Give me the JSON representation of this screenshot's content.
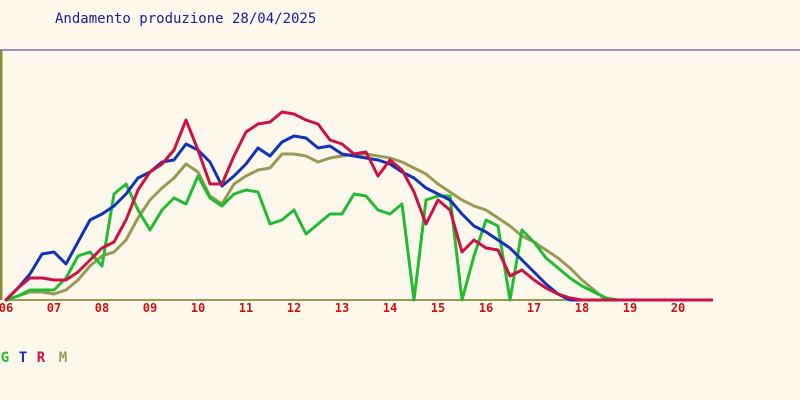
{
  "chart_data": {
    "type": "line",
    "title": "Andamento produzione 28/04/2025",
    "xlabel": "",
    "ylabel": "",
    "x_tick_labels": [
      "06",
      "07",
      "08",
      "09",
      "10",
      "11",
      "12",
      "13",
      "14",
      "15",
      "16",
      "17",
      "18",
      "19",
      "20"
    ],
    "x_range": [
      6.0,
      20.7
    ],
    "y_range": [
      0,
      100
    ],
    "grid": false,
    "legend_position": "bottom-left",
    "series": [
      {
        "name": "G",
        "color": "#22bb33",
        "x": [
          6.0,
          6.25,
          6.5,
          6.75,
          7.0,
          7.25,
          7.5,
          7.75,
          8.0,
          8.25,
          8.5,
          8.75,
          9.0,
          9.25,
          9.5,
          9.75,
          10.0,
          10.25,
          10.5,
          10.75,
          11.0,
          11.25,
          11.5,
          11.75,
          12.0,
          12.25,
          12.5,
          12.75,
          13.0,
          13.25,
          13.5,
          13.75,
          14.0,
          14.25,
          14.5,
          14.75,
          15.0,
          15.25,
          15.5,
          15.75,
          16.0,
          16.25,
          16.5,
          16.75,
          17.0,
          17.25,
          17.5,
          17.75,
          18.0,
          18.25,
          18.5,
          18.75,
          19.0,
          19.25,
          19.5,
          19.75,
          20.0,
          20.25,
          20.5,
          20.7
        ],
        "y": [
          0,
          2,
          5,
          5,
          5,
          11,
          22,
          24,
          17,
          53,
          58,
          45,
          35,
          45,
          51,
          48,
          62,
          51,
          47,
          53,
          55,
          54,
          38,
          40,
          45,
          33,
          38,
          43,
          43,
          53,
          52,
          45,
          43,
          48,
          0,
          50,
          52,
          52,
          0,
          22,
          40,
          37,
          0,
          35,
          29,
          21,
          16,
          11,
          7,
          4,
          1,
          0,
          0,
          0,
          0,
          0,
          0,
          0,
          0,
          0
        ]
      },
      {
        "name": "T",
        "color": "#1133bb",
        "x": [
          6.0,
          6.25,
          6.5,
          6.75,
          7.0,
          7.25,
          7.5,
          7.75,
          8.0,
          8.25,
          8.5,
          8.75,
          9.0,
          9.25,
          9.5,
          9.75,
          10.0,
          10.25,
          10.5,
          10.75,
          11.0,
          11.25,
          11.5,
          11.75,
          12.0,
          12.25,
          12.5,
          12.75,
          13.0,
          13.25,
          13.5,
          13.75,
          14.0,
          14.25,
          14.5,
          14.75,
          15.0,
          15.25,
          15.5,
          15.75,
          16.0,
          16.25,
          16.5,
          16.75,
          17.0,
          17.25,
          17.5,
          17.75,
          18.0,
          18.25,
          18.5,
          18.75,
          19.0,
          19.25,
          19.5,
          19.75,
          20.0,
          20.25,
          20.5,
          20.7
        ],
        "y": [
          0,
          6,
          13,
          23,
          24,
          18,
          29,
          40,
          43,
          47,
          53,
          61,
          64,
          69,
          70,
          78,
          75,
          69,
          57,
          62,
          68,
          76,
          72,
          79,
          82,
          81,
          76,
          77,
          73,
          72,
          71,
          70,
          68,
          64,
          61,
          56,
          53,
          50,
          43,
          37,
          34,
          30,
          26,
          20,
          14,
          8,
          3,
          0,
          0,
          0,
          0,
          0,
          0,
          0,
          0,
          0,
          0,
          0,
          0,
          0
        ]
      },
      {
        "name": "R",
        "color": "#cc1144",
        "x": [
          6.0,
          6.25,
          6.5,
          6.75,
          7.0,
          7.25,
          7.5,
          7.75,
          8.0,
          8.25,
          8.5,
          8.75,
          9.0,
          9.25,
          9.5,
          9.75,
          10.0,
          10.25,
          10.5,
          10.75,
          11.0,
          11.25,
          11.5,
          11.75,
          12.0,
          12.25,
          12.5,
          12.75,
          13.0,
          13.25,
          13.5,
          13.75,
          14.0,
          14.25,
          14.5,
          14.75,
          15.0,
          15.25,
          15.5,
          15.75,
          16.0,
          16.25,
          16.5,
          16.75,
          17.0,
          17.25,
          17.5,
          17.75,
          18.0,
          18.25,
          18.5,
          18.75,
          19.0,
          19.25,
          19.5,
          19.75,
          20.0,
          20.25,
          20.5,
          20.7
        ],
        "y": [
          0,
          6,
          11,
          11,
          10,
          10,
          14,
          20,
          26,
          29,
          40,
          55,
          64,
          68,
          75,
          90,
          75,
          58,
          58,
          72,
          84,
          88,
          89,
          94,
          93,
          90,
          88,
          80,
          78,
          73,
          74,
          62,
          70,
          65,
          54,
          38,
          50,
          45,
          24,
          30,
          26,
          25,
          12,
          15,
          10,
          6,
          3,
          1,
          0,
          0,
          0,
          0,
          0,
          0,
          0,
          0,
          0,
          0,
          0,
          0
        ]
      },
      {
        "name": "M",
        "color": "#999955",
        "x": [
          6.0,
          6.25,
          6.5,
          6.75,
          7.0,
          7.25,
          7.5,
          7.75,
          8.0,
          8.25,
          8.5,
          8.75,
          9.0,
          9.25,
          9.5,
          9.75,
          10.0,
          10.25,
          10.5,
          10.75,
          11.0,
          11.25,
          11.5,
          11.75,
          12.0,
          12.25,
          12.5,
          12.75,
          13.0,
          13.25,
          13.5,
          13.75,
          14.0,
          14.25,
          14.5,
          14.75,
          15.0,
          15.25,
          15.5,
          15.75,
          16.0,
          16.25,
          16.5,
          16.75,
          17.0,
          17.25,
          17.5,
          17.75,
          18.0,
          18.25,
          18.5,
          18.75,
          19.0,
          19.25,
          19.5,
          19.75,
          20.0,
          20.25,
          20.5,
          20.7
        ],
        "y": [
          0,
          2,
          4,
          4,
          3,
          5,
          10,
          17,
          22,
          24,
          30,
          41,
          50,
          56,
          61,
          68,
          64,
          52,
          48,
          58,
          62,
          65,
          66,
          73,
          73,
          72,
          69,
          71,
          72,
          73,
          73,
          72,
          71,
          69,
          66,
          63,
          58,
          54,
          50,
          47,
          45,
          41,
          37,
          32,
          29,
          25,
          21,
          16,
          10,
          5,
          0,
          0,
          0,
          0,
          0,
          0,
          0,
          0,
          0,
          0
        ]
      }
    ]
  }
}
